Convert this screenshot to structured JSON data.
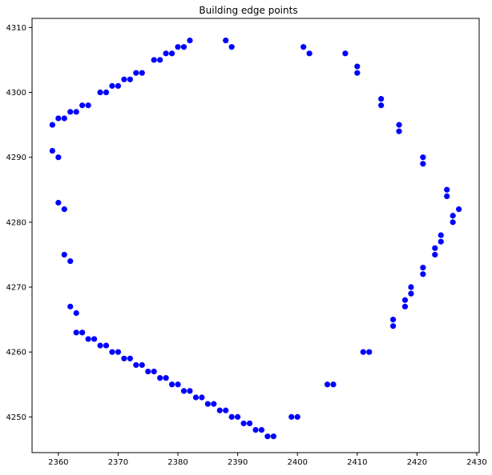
{
  "chart_data": {
    "type": "scatter",
    "title": "Building edge points",
    "xlabel": "",
    "ylabel": "",
    "xlim": [
      2355.6,
      2430.4
    ],
    "ylim": [
      4244.5,
      4311.4
    ],
    "xticks": [
      "2360",
      "2370",
      "2380",
      "2390",
      "2400",
      "2410",
      "2420",
      "2430"
    ],
    "yticks": [
      "4250",
      "4260",
      "4270",
      "4280",
      "4290",
      "4300",
      "4310"
    ],
    "grid": false,
    "legend": "none",
    "marker_color": "#0000ff",
    "points": [
      {
        "x": 2359,
        "y": 4295
      },
      {
        "x": 2360,
        "y": 4296
      },
      {
        "x": 2361,
        "y": 4296
      },
      {
        "x": 2362,
        "y": 4297
      },
      {
        "x": 2363,
        "y": 4297
      },
      {
        "x": 2364,
        "y": 4298
      },
      {
        "x": 2365,
        "y": 4298
      },
      {
        "x": 2367,
        "y": 4300
      },
      {
        "x": 2368,
        "y": 4300
      },
      {
        "x": 2369,
        "y": 4301
      },
      {
        "x": 2370,
        "y": 4301
      },
      {
        "x": 2371,
        "y": 4302
      },
      {
        "x": 2372,
        "y": 4302
      },
      {
        "x": 2373,
        "y": 4303
      },
      {
        "x": 2374,
        "y": 4303
      },
      {
        "x": 2376,
        "y": 4305
      },
      {
        "x": 2377,
        "y": 4305
      },
      {
        "x": 2378,
        "y": 4306
      },
      {
        "x": 2379,
        "y": 4306
      },
      {
        "x": 2380,
        "y": 4307
      },
      {
        "x": 2381,
        "y": 4307
      },
      {
        "x": 2382,
        "y": 4308
      },
      {
        "x": 2388,
        "y": 4308
      },
      {
        "x": 2389,
        "y": 4307
      },
      {
        "x": 2401,
        "y": 4307
      },
      {
        "x": 2402,
        "y": 4306
      },
      {
        "x": 2408,
        "y": 4306
      },
      {
        "x": 2410,
        "y": 4304
      },
      {
        "x": 2410,
        "y": 4303
      },
      {
        "x": 2414,
        "y": 4299
      },
      {
        "x": 2414,
        "y": 4298
      },
      {
        "x": 2417,
        "y": 4295
      },
      {
        "x": 2417,
        "y": 4294
      },
      {
        "x": 2421,
        "y": 4290
      },
      {
        "x": 2421,
        "y": 4289
      },
      {
        "x": 2425,
        "y": 4285
      },
      {
        "x": 2425,
        "y": 4284
      },
      {
        "x": 2427,
        "y": 4282
      },
      {
        "x": 2426,
        "y": 4281
      },
      {
        "x": 2426,
        "y": 4280
      },
      {
        "x": 2424,
        "y": 4278
      },
      {
        "x": 2424,
        "y": 4277
      },
      {
        "x": 2423,
        "y": 4276
      },
      {
        "x": 2423,
        "y": 4275
      },
      {
        "x": 2421,
        "y": 4273
      },
      {
        "x": 2421,
        "y": 4272
      },
      {
        "x": 2419,
        "y": 4270
      },
      {
        "x": 2419,
        "y": 4269
      },
      {
        "x": 2418,
        "y": 4268
      },
      {
        "x": 2418,
        "y": 4267
      },
      {
        "x": 2416,
        "y": 4265
      },
      {
        "x": 2416,
        "y": 4264
      },
      {
        "x": 2411,
        "y": 4260
      },
      {
        "x": 2412,
        "y": 4260
      },
      {
        "x": 2405,
        "y": 4255
      },
      {
        "x": 2406,
        "y": 4255
      },
      {
        "x": 2399,
        "y": 4250
      },
      {
        "x": 2400,
        "y": 4250
      },
      {
        "x": 2395,
        "y": 4247
      },
      {
        "x": 2396,
        "y": 4247
      },
      {
        "x": 2393,
        "y": 4248
      },
      {
        "x": 2394,
        "y": 4248
      },
      {
        "x": 2391,
        "y": 4249
      },
      {
        "x": 2392,
        "y": 4249
      },
      {
        "x": 2389,
        "y": 4250
      },
      {
        "x": 2390,
        "y": 4250
      },
      {
        "x": 2387,
        "y": 4251
      },
      {
        "x": 2388,
        "y": 4251
      },
      {
        "x": 2385,
        "y": 4252
      },
      {
        "x": 2386,
        "y": 4252
      },
      {
        "x": 2383,
        "y": 4253
      },
      {
        "x": 2384,
        "y": 4253
      },
      {
        "x": 2381,
        "y": 4254
      },
      {
        "x": 2382,
        "y": 4254
      },
      {
        "x": 2379,
        "y": 4255
      },
      {
        "x": 2380,
        "y": 4255
      },
      {
        "x": 2377,
        "y": 4256
      },
      {
        "x": 2378,
        "y": 4256
      },
      {
        "x": 2375,
        "y": 4257
      },
      {
        "x": 2376,
        "y": 4257
      },
      {
        "x": 2373,
        "y": 4258
      },
      {
        "x": 2374,
        "y": 4258
      },
      {
        "x": 2371,
        "y": 4259
      },
      {
        "x": 2372,
        "y": 4259
      },
      {
        "x": 2369,
        "y": 4260
      },
      {
        "x": 2370,
        "y": 4260
      },
      {
        "x": 2367,
        "y": 4261
      },
      {
        "x": 2368,
        "y": 4261
      },
      {
        "x": 2365,
        "y": 4262
      },
      {
        "x": 2366,
        "y": 4262
      },
      {
        "x": 2363,
        "y": 4263
      },
      {
        "x": 2364,
        "y": 4263
      },
      {
        "x": 2363,
        "y": 4266
      },
      {
        "x": 2362,
        "y": 4267
      },
      {
        "x": 2362,
        "y": 4274
      },
      {
        "x": 2361,
        "y": 4275
      },
      {
        "x": 2361,
        "y": 4282
      },
      {
        "x": 2360,
        "y": 4283
      },
      {
        "x": 2360,
        "y": 4290
      },
      {
        "x": 2359,
        "y": 4291
      }
    ]
  }
}
